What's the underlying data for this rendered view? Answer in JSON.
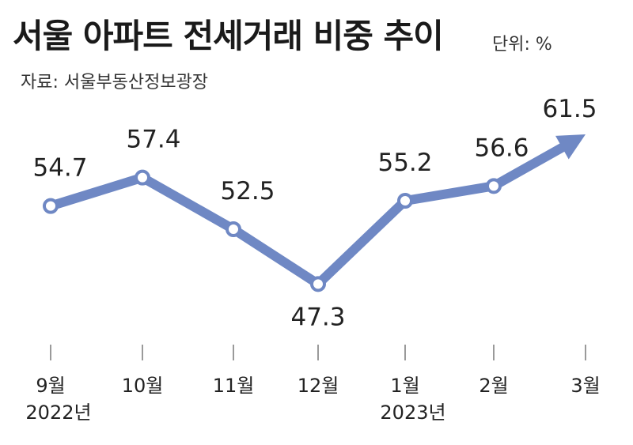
{
  "header": {
    "title": "서울 아파트 전세거래 비중 추이",
    "unit": "단위: %",
    "source": "자료: 서울부동산정보광장"
  },
  "chart_data": {
    "type": "line",
    "categories": [
      "9월",
      "10월",
      "11월",
      "12월",
      "1월",
      "2월",
      "3월"
    ],
    "year_labels": [
      "2022년",
      "",
      "",
      "",
      "2023년",
      "",
      ""
    ],
    "values": [
      54.7,
      57.4,
      52.5,
      47.3,
      55.2,
      56.6,
      61.5
    ],
    "value_labels": [
      "54.7",
      "57.4",
      "52.5",
      "47.3",
      "55.2",
      "56.6",
      "61.5"
    ],
    "ylim": [
      45,
      63
    ],
    "grid": false,
    "last_point_arrow": true,
    "line_color": "#6f88c4",
    "marker_fill": "#ffffff"
  }
}
